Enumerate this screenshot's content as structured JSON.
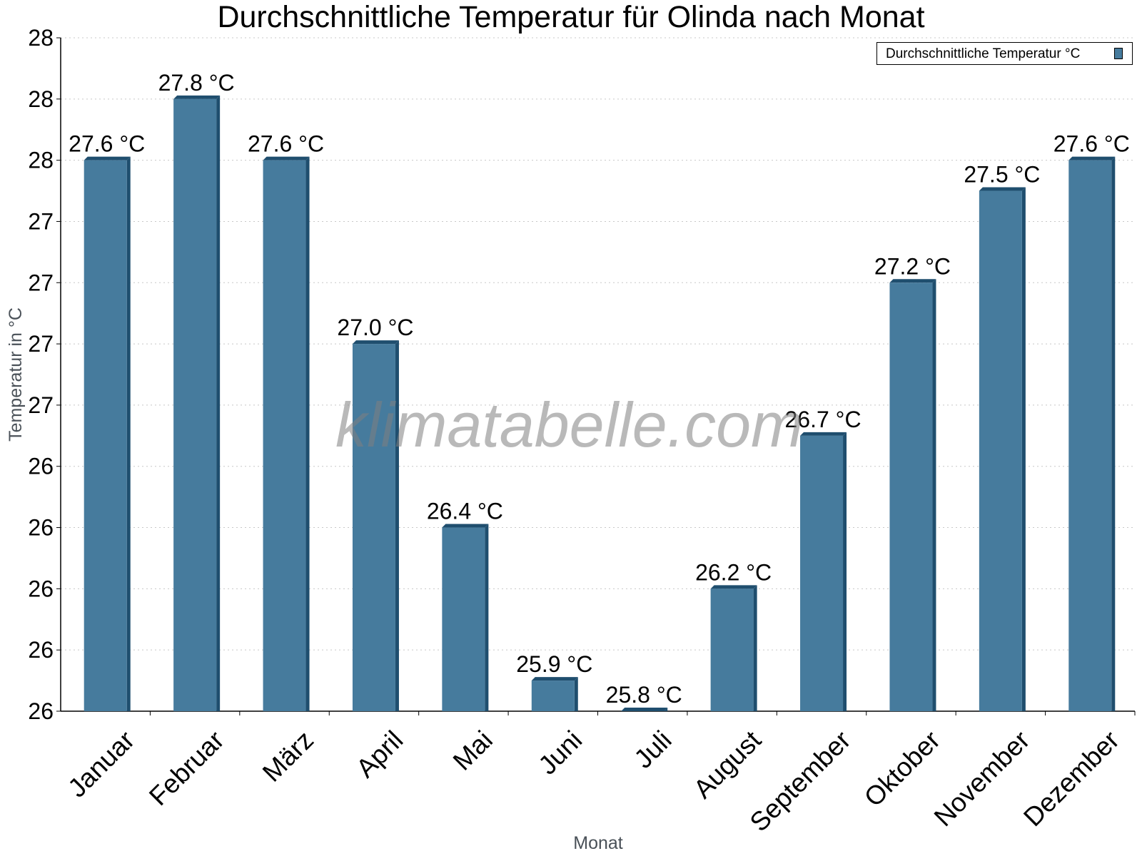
{
  "chart_data": {
    "type": "bar",
    "title": "Durchschnittliche Temperatur für Olinda nach Monat",
    "xlabel": "Monat",
    "ylabel": "Temperatur in °C",
    "categories": [
      "Januar",
      "Februar",
      "März",
      "April",
      "Mai",
      "Juni",
      "Juli",
      "August",
      "September",
      "Oktober",
      "November",
      "Dezember"
    ],
    "series": [
      {
        "name": "Durchschnittliche Temperatur °C",
        "values": [
          27.6,
          27.8,
          27.6,
          27.0,
          26.4,
          25.9,
          25.8,
          26.2,
          26.7,
          27.2,
          27.5,
          27.6
        ],
        "labels": [
          "27.6 °C",
          "27.8 °C",
          "27.6 °C",
          "27.0 °C",
          "26.4 °C",
          "25.9 °C",
          "25.8 °C",
          "26.2 °C",
          "26.7 °C",
          "27.2 °C",
          "27.5 °C",
          "27.6 °C"
        ],
        "color": "#467b9d",
        "edge_color": "#1f4e6e"
      }
    ],
    "ylim": [
      25.8,
      28.0
    ],
    "yticks": [
      25.8,
      26.0,
      26.2,
      26.4,
      26.6,
      26.8,
      27.0,
      27.2,
      27.4,
      27.6,
      27.8,
      28.0
    ],
    "ytick_labels": [
      "26",
      "26",
      "26",
      "26",
      "26",
      "27",
      "27",
      "27",
      "27",
      "28",
      "28",
      "28"
    ],
    "grid": true,
    "legend": "top-right",
    "watermark": "klimatabelle.com"
  }
}
